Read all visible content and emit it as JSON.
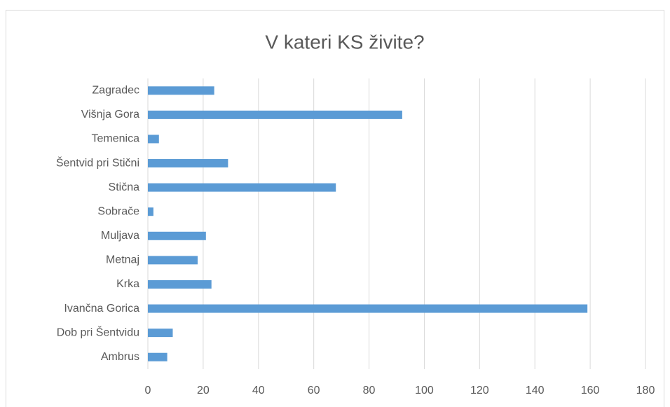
{
  "chart_data": {
    "type": "bar",
    "orientation": "horizontal",
    "title": "V kateri KS živite?",
    "categories": [
      "Zagradec",
      "Višnja Gora",
      "Temenica",
      "Šentvid pri Stični",
      "Stična",
      "Sobrače",
      "Muljava",
      "Metnaj",
      "Krka",
      "Ivančna Gorica",
      "Dob pri Šentvidu",
      "Ambrus"
    ],
    "values": [
      24,
      92,
      4,
      29,
      68,
      2,
      21,
      18,
      23,
      159,
      9,
      7
    ],
    "color": "#5b9bd5",
    "xlim": [
      0,
      180
    ],
    "xticks": [
      0,
      20,
      40,
      60,
      80,
      100,
      120,
      140,
      160,
      180
    ],
    "grid": true
  }
}
